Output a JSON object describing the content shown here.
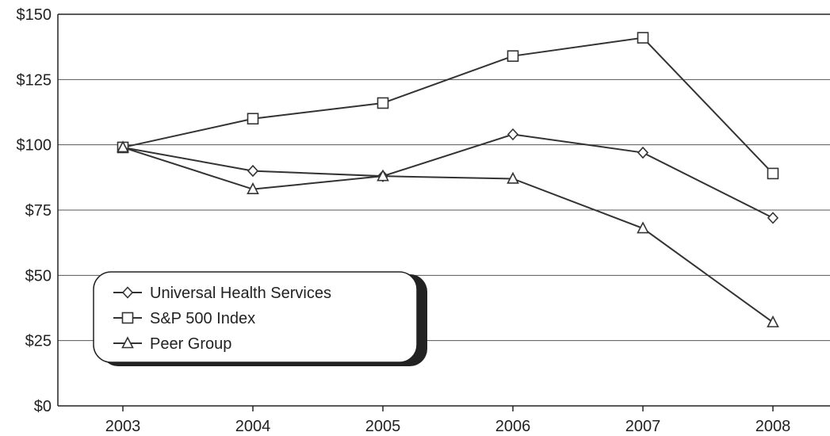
{
  "chart_data": {
    "type": "line",
    "title": "",
    "xlabel": "",
    "ylabel": "",
    "x": [
      "2003",
      "2004",
      "2005",
      "2006",
      "2007",
      "2008"
    ],
    "ylim": [
      0,
      150
    ],
    "yticks": [
      0,
      25,
      50,
      75,
      100,
      125,
      150
    ],
    "ytick_labels": [
      "$0",
      "$25",
      "$50",
      "$75",
      "$100",
      "$125",
      "$150"
    ],
    "grid": true,
    "legend_position": "lower-left",
    "series": [
      {
        "name": "Universal Health Services",
        "marker": "diamond",
        "values": [
          99,
          90,
          88,
          104,
          97,
          72
        ]
      },
      {
        "name": "S&P 500 Index",
        "marker": "square",
        "values": [
          99,
          110,
          116,
          134,
          141,
          89
        ]
      },
      {
        "name": "Peer Group",
        "marker": "triangle",
        "values": [
          99,
          83,
          88,
          87,
          68,
          32
        ]
      }
    ]
  }
}
